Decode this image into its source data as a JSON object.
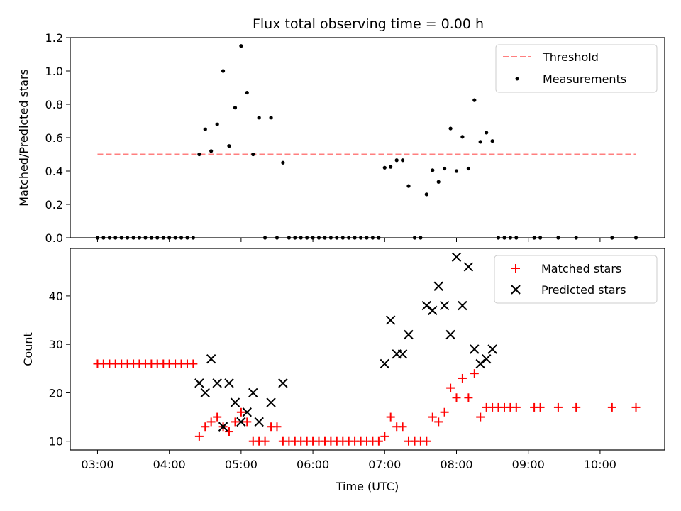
{
  "chart_data": [
    {
      "type": "scatter",
      "title": "Flux total observing time = 0.00 h",
      "xlabel": "",
      "ylabel": "Matched/Predicted stars",
      "ylim": [
        0,
        1.2
      ],
      "yticks": [
        "0.0",
        "0.2",
        "0.4",
        "0.6",
        "0.8",
        "1.0",
        "1.2"
      ],
      "legend_position": "top-right",
      "threshold": {
        "name": "Threshold",
        "value": 0.5,
        "color": "#ff7f7f",
        "x_range": [
          3.0,
          10.5
        ]
      },
      "series": [
        {
          "name": "Measurements",
          "color": "#000000",
          "points": [
            [
              3.0,
              0
            ],
            [
              3.083,
              0
            ],
            [
              3.167,
              0
            ],
            [
              3.25,
              0
            ],
            [
              3.333,
              0
            ],
            [
              3.417,
              0
            ],
            [
              3.5,
              0
            ],
            [
              3.583,
              0
            ],
            [
              3.667,
              0
            ],
            [
              3.75,
              0
            ],
            [
              3.833,
              0
            ],
            [
              3.917,
              0
            ],
            [
              4.0,
              0
            ],
            [
              4.083,
              0
            ],
            [
              4.167,
              0
            ],
            [
              4.25,
              0
            ],
            [
              4.333,
              0
            ],
            [
              4.417,
              0.5
            ],
            [
              4.5,
              0.65
            ],
            [
              4.583,
              0.52
            ],
            [
              4.667,
              0.68
            ],
            [
              4.75,
              1.0
            ],
            [
              4.833,
              0.55
            ],
            [
              4.917,
              0.78
            ],
            [
              5.0,
              1.15
            ],
            [
              5.083,
              0.87
            ],
            [
              5.167,
              0.5
            ],
            [
              5.25,
              0.72
            ],
            [
              5.333,
              0
            ],
            [
              5.417,
              0.72
            ],
            [
              5.5,
              0
            ],
            [
              5.583,
              0.45
            ],
            [
              5.667,
              0
            ],
            [
              5.75,
              0
            ],
            [
              5.833,
              0
            ],
            [
              5.917,
              0
            ],
            [
              6.0,
              0
            ],
            [
              6.083,
              0
            ],
            [
              6.167,
              0
            ],
            [
              6.25,
              0
            ],
            [
              6.333,
              0
            ],
            [
              6.417,
              0
            ],
            [
              6.5,
              0
            ],
            [
              6.583,
              0
            ],
            [
              6.667,
              0
            ],
            [
              6.75,
              0
            ],
            [
              6.833,
              0
            ],
            [
              6.917,
              0
            ],
            [
              7.0,
              0.42
            ],
            [
              7.083,
              0.425
            ],
            [
              7.167,
              0.465
            ],
            [
              7.25,
              0.465
            ],
            [
              7.333,
              0.31
            ],
            [
              7.417,
              0
            ],
            [
              7.5,
              0
            ],
            [
              7.583,
              0.26
            ],
            [
              7.667,
              0.405
            ],
            [
              7.75,
              0.335
            ],
            [
              7.833,
              0.415
            ],
            [
              7.917,
              0.655
            ],
            [
              8.0,
              0.4
            ],
            [
              8.083,
              0.605
            ],
            [
              8.167,
              0.415
            ],
            [
              8.25,
              0.825
            ],
            [
              8.333,
              0.575
            ],
            [
              8.417,
              0.63
            ],
            [
              8.5,
              0.58
            ],
            [
              8.583,
              0
            ],
            [
              8.667,
              0
            ],
            [
              8.75,
              0
            ],
            [
              8.833,
              0
            ],
            [
              9.083,
              0
            ],
            [
              9.167,
              0
            ],
            [
              9.417,
              0
            ],
            [
              9.667,
              0
            ],
            [
              10.167,
              0
            ],
            [
              10.5,
              0
            ]
          ]
        }
      ]
    },
    {
      "type": "scatter",
      "title": "",
      "xlabel": "Time (UTC)",
      "ylabel": "Count",
      "ylim": [
        8.2,
        49.8
      ],
      "yticks": [
        "10",
        "20",
        "30",
        "40"
      ],
      "xlim": [
        2.62,
        10.9
      ],
      "xticks": [
        "03:00",
        "04:00",
        "05:00",
        "06:00",
        "07:00",
        "08:00",
        "09:00",
        "10:00"
      ],
      "legend_position": "top-right",
      "series": [
        {
          "name": "Matched stars",
          "marker": "+",
          "color": "#ff0000",
          "points": [
            [
              3.0,
              26
            ],
            [
              3.083,
              26
            ],
            [
              3.167,
              26
            ],
            [
              3.25,
              26
            ],
            [
              3.333,
              26
            ],
            [
              3.417,
              26
            ],
            [
              3.5,
              26
            ],
            [
              3.583,
              26
            ],
            [
              3.667,
              26
            ],
            [
              3.75,
              26
            ],
            [
              3.833,
              26
            ],
            [
              3.917,
              26
            ],
            [
              4.0,
              26
            ],
            [
              4.083,
              26
            ],
            [
              4.167,
              26
            ],
            [
              4.25,
              26
            ],
            [
              4.333,
              26
            ],
            [
              4.417,
              11
            ],
            [
              4.5,
              13
            ],
            [
              4.583,
              14
            ],
            [
              4.667,
              15
            ],
            [
              4.75,
              13
            ],
            [
              4.833,
              12
            ],
            [
              4.917,
              14
            ],
            [
              5.0,
              16
            ],
            [
              5.083,
              14
            ],
            [
              5.167,
              10
            ],
            [
              5.25,
              10
            ],
            [
              5.333,
              10
            ],
            [
              5.417,
              13
            ],
            [
              5.5,
              13
            ],
            [
              5.583,
              10
            ],
            [
              5.667,
              10
            ],
            [
              5.75,
              10
            ],
            [
              5.833,
              10
            ],
            [
              5.917,
              10
            ],
            [
              6.0,
              10
            ],
            [
              6.083,
              10
            ],
            [
              6.167,
              10
            ],
            [
              6.25,
              10
            ],
            [
              6.333,
              10
            ],
            [
              6.417,
              10
            ],
            [
              6.5,
              10
            ],
            [
              6.583,
              10
            ],
            [
              6.667,
              10
            ],
            [
              6.75,
              10
            ],
            [
              6.833,
              10
            ],
            [
              6.917,
              10
            ],
            [
              7.0,
              11
            ],
            [
              7.083,
              15
            ],
            [
              7.167,
              13
            ],
            [
              7.25,
              13
            ],
            [
              7.333,
              10
            ],
            [
              7.417,
              10
            ],
            [
              7.5,
              10
            ],
            [
              7.583,
              10
            ],
            [
              7.667,
              15
            ],
            [
              7.75,
              14
            ],
            [
              7.833,
              16
            ],
            [
              7.917,
              21
            ],
            [
              8.0,
              19
            ],
            [
              8.083,
              23
            ],
            [
              8.167,
              19
            ],
            [
              8.25,
              24
            ],
            [
              8.333,
              15
            ],
            [
              8.417,
              17
            ],
            [
              8.5,
              17
            ],
            [
              8.583,
              17
            ],
            [
              8.667,
              17
            ],
            [
              8.75,
              17
            ],
            [
              8.833,
              17
            ],
            [
              9.083,
              17
            ],
            [
              9.167,
              17
            ],
            [
              9.417,
              17
            ],
            [
              9.667,
              17
            ],
            [
              10.167,
              17
            ],
            [
              10.5,
              17
            ]
          ]
        },
        {
          "name": "Predicted stars",
          "marker": "x",
          "color": "#000000",
          "points": [
            [
              4.417,
              22
            ],
            [
              4.5,
              20
            ],
            [
              4.583,
              27
            ],
            [
              4.667,
              22
            ],
            [
              4.75,
              13
            ],
            [
              4.833,
              22
            ],
            [
              4.917,
              18
            ],
            [
              5.0,
              14
            ],
            [
              5.083,
              16
            ],
            [
              5.167,
              20
            ],
            [
              5.25,
              14
            ],
            [
              5.417,
              18
            ],
            [
              5.583,
              22
            ],
            [
              7.0,
              26
            ],
            [
              7.083,
              35
            ],
            [
              7.167,
              28
            ],
            [
              7.25,
              28
            ],
            [
              7.333,
              32
            ],
            [
              7.583,
              38
            ],
            [
              7.667,
              37
            ],
            [
              7.75,
              42
            ],
            [
              7.833,
              38
            ],
            [
              7.917,
              32
            ],
            [
              8.0,
              48
            ],
            [
              8.083,
              38
            ],
            [
              8.167,
              46
            ],
            [
              8.25,
              29
            ],
            [
              8.333,
              26
            ],
            [
              8.417,
              27
            ],
            [
              8.5,
              29
            ]
          ]
        }
      ]
    }
  ]
}
